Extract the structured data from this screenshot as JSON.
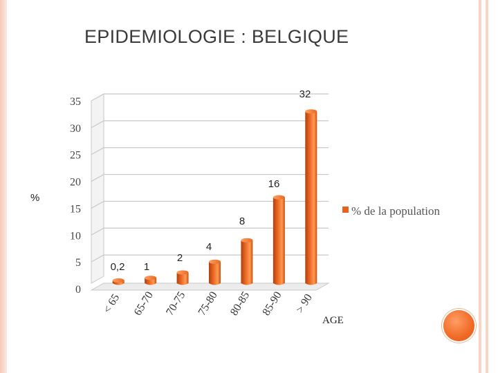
{
  "slide": {
    "title": "EPIDEMIOLOGIE : BELGIQUE"
  },
  "chart_data": {
    "type": "bar",
    "categories": [
      "< 65",
      "65-70",
      "70-75",
      "75-80",
      "80-85",
      "85-90",
      "> 90"
    ],
    "series": [
      {
        "name": "% de la population",
        "values": [
          0.2,
          1,
          2,
          4,
          8,
          16,
          32
        ]
      }
    ],
    "data_labels": [
      "0,2",
      "1",
      "2",
      "4",
      "8",
      "16",
      "32"
    ],
    "ylabel": "%",
    "xlabel": "AGE",
    "ylim": [
      0,
      35
    ],
    "yticks": [
      0,
      5,
      10,
      15,
      20,
      25,
      30,
      35
    ],
    "grid": true,
    "legend": "right",
    "colors": {
      "bar": "#e8621c",
      "bar_dark": "#b43f0b",
      "bar_light": "#ff9a52",
      "grid": "#c8c8c8"
    }
  }
}
